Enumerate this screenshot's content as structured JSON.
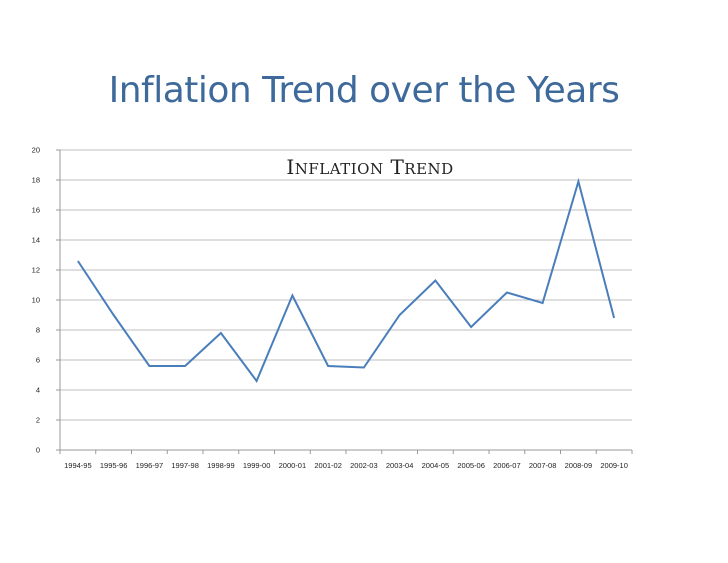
{
  "slide": {
    "title": "Inflation Trend over the Years"
  },
  "chart_data": {
    "type": "line",
    "title": "Inflation Trend",
    "xlabel": "",
    "ylabel": "",
    "ylim": [
      0,
      20
    ],
    "yticks": [
      0,
      2,
      4,
      6,
      8,
      10,
      12,
      14,
      16,
      18,
      20
    ],
    "grid": true,
    "legend": "none",
    "categories": [
      "1994-95",
      "1995-96",
      "1996-97",
      "1997-98",
      "1998-99",
      "1999-00",
      "2000-01",
      "2001-02",
      "2002-03",
      "2003-04",
      "2004-05",
      "2005-06",
      "2006-07",
      "2007-08",
      "2008-09",
      "2009-10"
    ],
    "series": [
      {
        "color": "#4a7ebb",
        "values": [
          12.6,
          9.0,
          5.6,
          5.6,
          7.8,
          4.6,
          10.3,
          5.6,
          5.5,
          9.0,
          11.3,
          8.2,
          10.5,
          9.8,
          17.9,
          8.8
        ]
      }
    ]
  }
}
